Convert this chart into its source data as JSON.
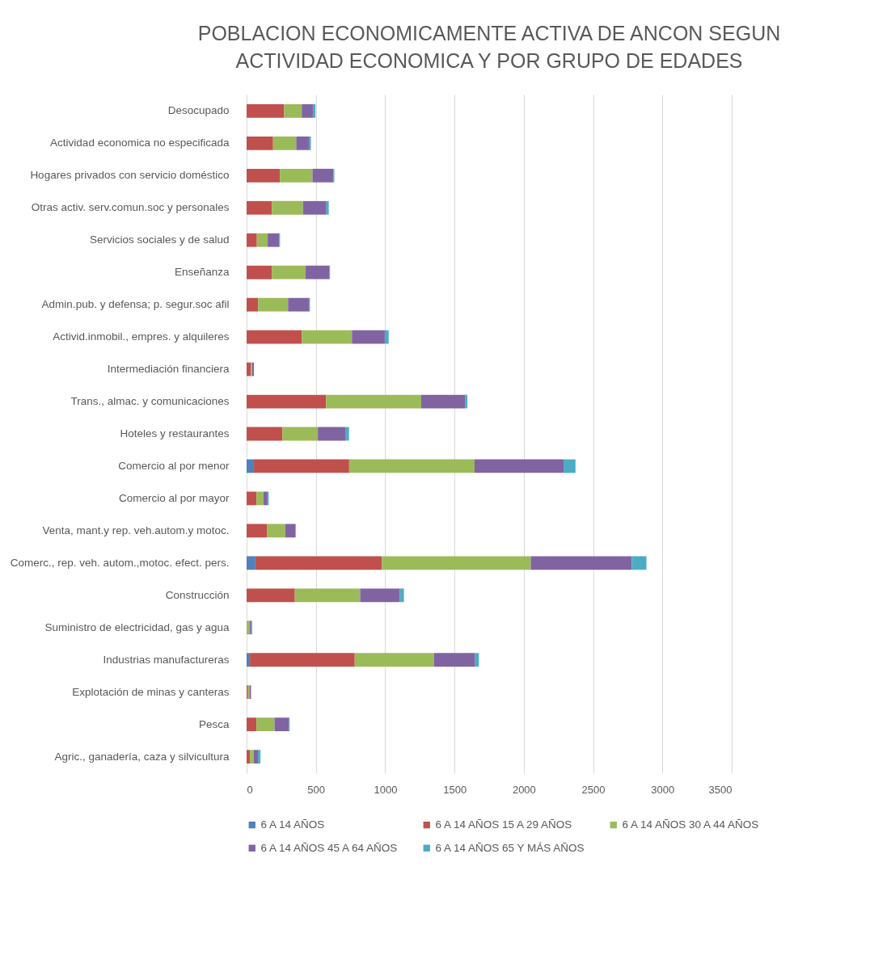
{
  "chart_data": {
    "type": "bar",
    "orientation": "horizontal",
    "stacked": true,
    "title": [
      "POBLACION ECONOMICAMENTE ACTIVA DE ANCON SEGUN",
      "ACTIVIDAD ECONOMICA Y POR GRUPO DE EDADES"
    ],
    "categories": [
      "Desocupado",
      "Actividad economica no especificada",
      "Hogares privados con servicio doméstico",
      "Otras activ. serv.comun.soc y personales",
      "Servicios sociales y de salud",
      "Enseñanza",
      "Admin.pub. y defensa; p. segur.soc afil",
      "Activid.inmobil., empres. y alquileres",
      "Intermediación financiera",
      "Trans., almac. y comunicaciones",
      "Hoteles y restaurantes",
      "Comercio al por menor",
      "Comercio al por mayor",
      "Venta, mant.y rep. veh.autom.y motoc.",
      "Comerc., rep. veh. autom.,motoc. efect. pers.",
      "Construcción",
      "Suministro de electricidad, gas y agua",
      "Industrias manufactureras",
      "Explotación de minas y canteras",
      "Pesca",
      "Agric., ganadería, caza y silvicultura"
    ],
    "series": [
      {
        "name": "6 A 14 AÑOS",
        "color": "#4f81bd",
        "values": [
          0,
          0,
          0,
          0,
          0,
          0,
          0,
          0,
          0,
          0,
          0,
          53,
          0,
          0,
          63,
          0,
          0,
          24,
          0,
          0,
          0
        ]
      },
      {
        "name": "6 A 14 AÑOS 15 A 29 AÑOS",
        "color": "#c0504d",
        "values": [
          271,
          191,
          240,
          182,
          74,
          182,
          83,
          398,
          32,
          574,
          259,
          687,
          71,
          149,
          913,
          348,
          0,
          756,
          10,
          71,
          24
        ]
      },
      {
        "name": "6 A 14 AÑOS 30 A 44 AÑOS",
        "color": "#9bbb59",
        "values": [
          127,
          167,
          235,
          225,
          78,
          244,
          216,
          362,
          8,
          686,
          255,
          905,
          51,
          130,
          1074,
          471,
          22,
          572,
          10,
          130,
          27
        ]
      },
      {
        "name": "6 A 14 AÑOS 45 A 64 AÑOS",
        "color": "#8064a2",
        "values": [
          80,
          91,
          152,
          169,
          83,
          170,
          150,
          237,
          13,
          316,
          198,
          642,
          29,
          73,
          729,
          287,
          12,
          297,
          12,
          104,
          31
        ]
      },
      {
        "name": "6 A 14 AÑOS 65 Y MÁS AÑOS",
        "color": "#4bacc6",
        "values": [
          19,
          15,
          6,
          17,
          6,
          6,
          8,
          28,
          0,
          17,
          27,
          86,
          8,
          4,
          106,
          29,
          6,
          27,
          0,
          6,
          18
        ]
      }
    ],
    "xlim": [
      0,
      3500
    ],
    "xticks": [
      0,
      500,
      1000,
      1500,
      2000,
      2500,
      3000,
      3500
    ],
    "grid": "x",
    "legend": "bottom"
  }
}
